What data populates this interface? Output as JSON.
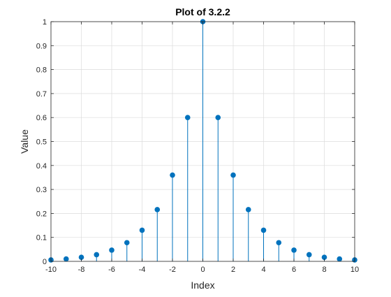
{
  "chart_data": {
    "type": "stem",
    "title": "Plot of 3.2.2",
    "xlabel": "Index",
    "ylabel": "Value",
    "xlim": [
      -10,
      10
    ],
    "ylim": [
      0,
      1
    ],
    "xticks": [
      -10,
      -8,
      -6,
      -4,
      -2,
      0,
      2,
      4,
      6,
      8,
      10
    ],
    "yticks": [
      0,
      0.1,
      0.2,
      0.3,
      0.4,
      0.5,
      0.6,
      0.7,
      0.8,
      0.9,
      1
    ],
    "grid": true,
    "legend": "none",
    "x": [
      -10,
      -9,
      -8,
      -7,
      -6,
      -5,
      -4,
      -3,
      -2,
      -1,
      0,
      1,
      2,
      3,
      4,
      5,
      6,
      7,
      8,
      9,
      10
    ],
    "values": [
      0.006,
      0.01,
      0.017,
      0.028,
      0.047,
      0.078,
      0.13,
      0.216,
      0.36,
      0.6,
      1.0,
      0.6,
      0.36,
      0.216,
      0.13,
      0.078,
      0.047,
      0.028,
      0.017,
      0.01,
      0.006
    ],
    "color": "#0072BD"
  }
}
